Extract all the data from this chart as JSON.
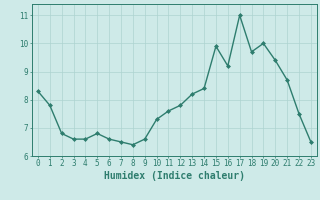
{
  "x": [
    0,
    1,
    2,
    3,
    4,
    5,
    6,
    7,
    8,
    9,
    10,
    11,
    12,
    13,
    14,
    15,
    16,
    17,
    18,
    19,
    20,
    21,
    22,
    23
  ],
  "y": [
    8.3,
    7.8,
    6.8,
    6.6,
    6.6,
    6.8,
    6.6,
    6.5,
    6.4,
    6.6,
    7.3,
    7.6,
    7.8,
    8.2,
    8.4,
    9.9,
    9.2,
    11.0,
    9.7,
    10.0,
    9.4,
    8.7,
    7.5,
    6.5
  ],
  "line_color": "#2e7d6e",
  "marker": "D",
  "marker_size": 2.0,
  "linewidth": 1.0,
  "bg_color": "#ceeae8",
  "grid_color": "#aed4d0",
  "xlabel": "Humidex (Indice chaleur)",
  "ylim": [
    6,
    11.4
  ],
  "xlim": [
    -0.5,
    23.5
  ],
  "yticks": [
    6,
    7,
    8,
    9,
    10,
    11
  ],
  "xticks": [
    0,
    1,
    2,
    3,
    4,
    5,
    6,
    7,
    8,
    9,
    10,
    11,
    12,
    13,
    14,
    15,
    16,
    17,
    18,
    19,
    20,
    21,
    22,
    23
  ],
  "tick_color": "#2e7d6e",
  "tick_fontsize": 5.5,
  "xlabel_fontsize": 7,
  "spine_color": "#2e7d6e"
}
